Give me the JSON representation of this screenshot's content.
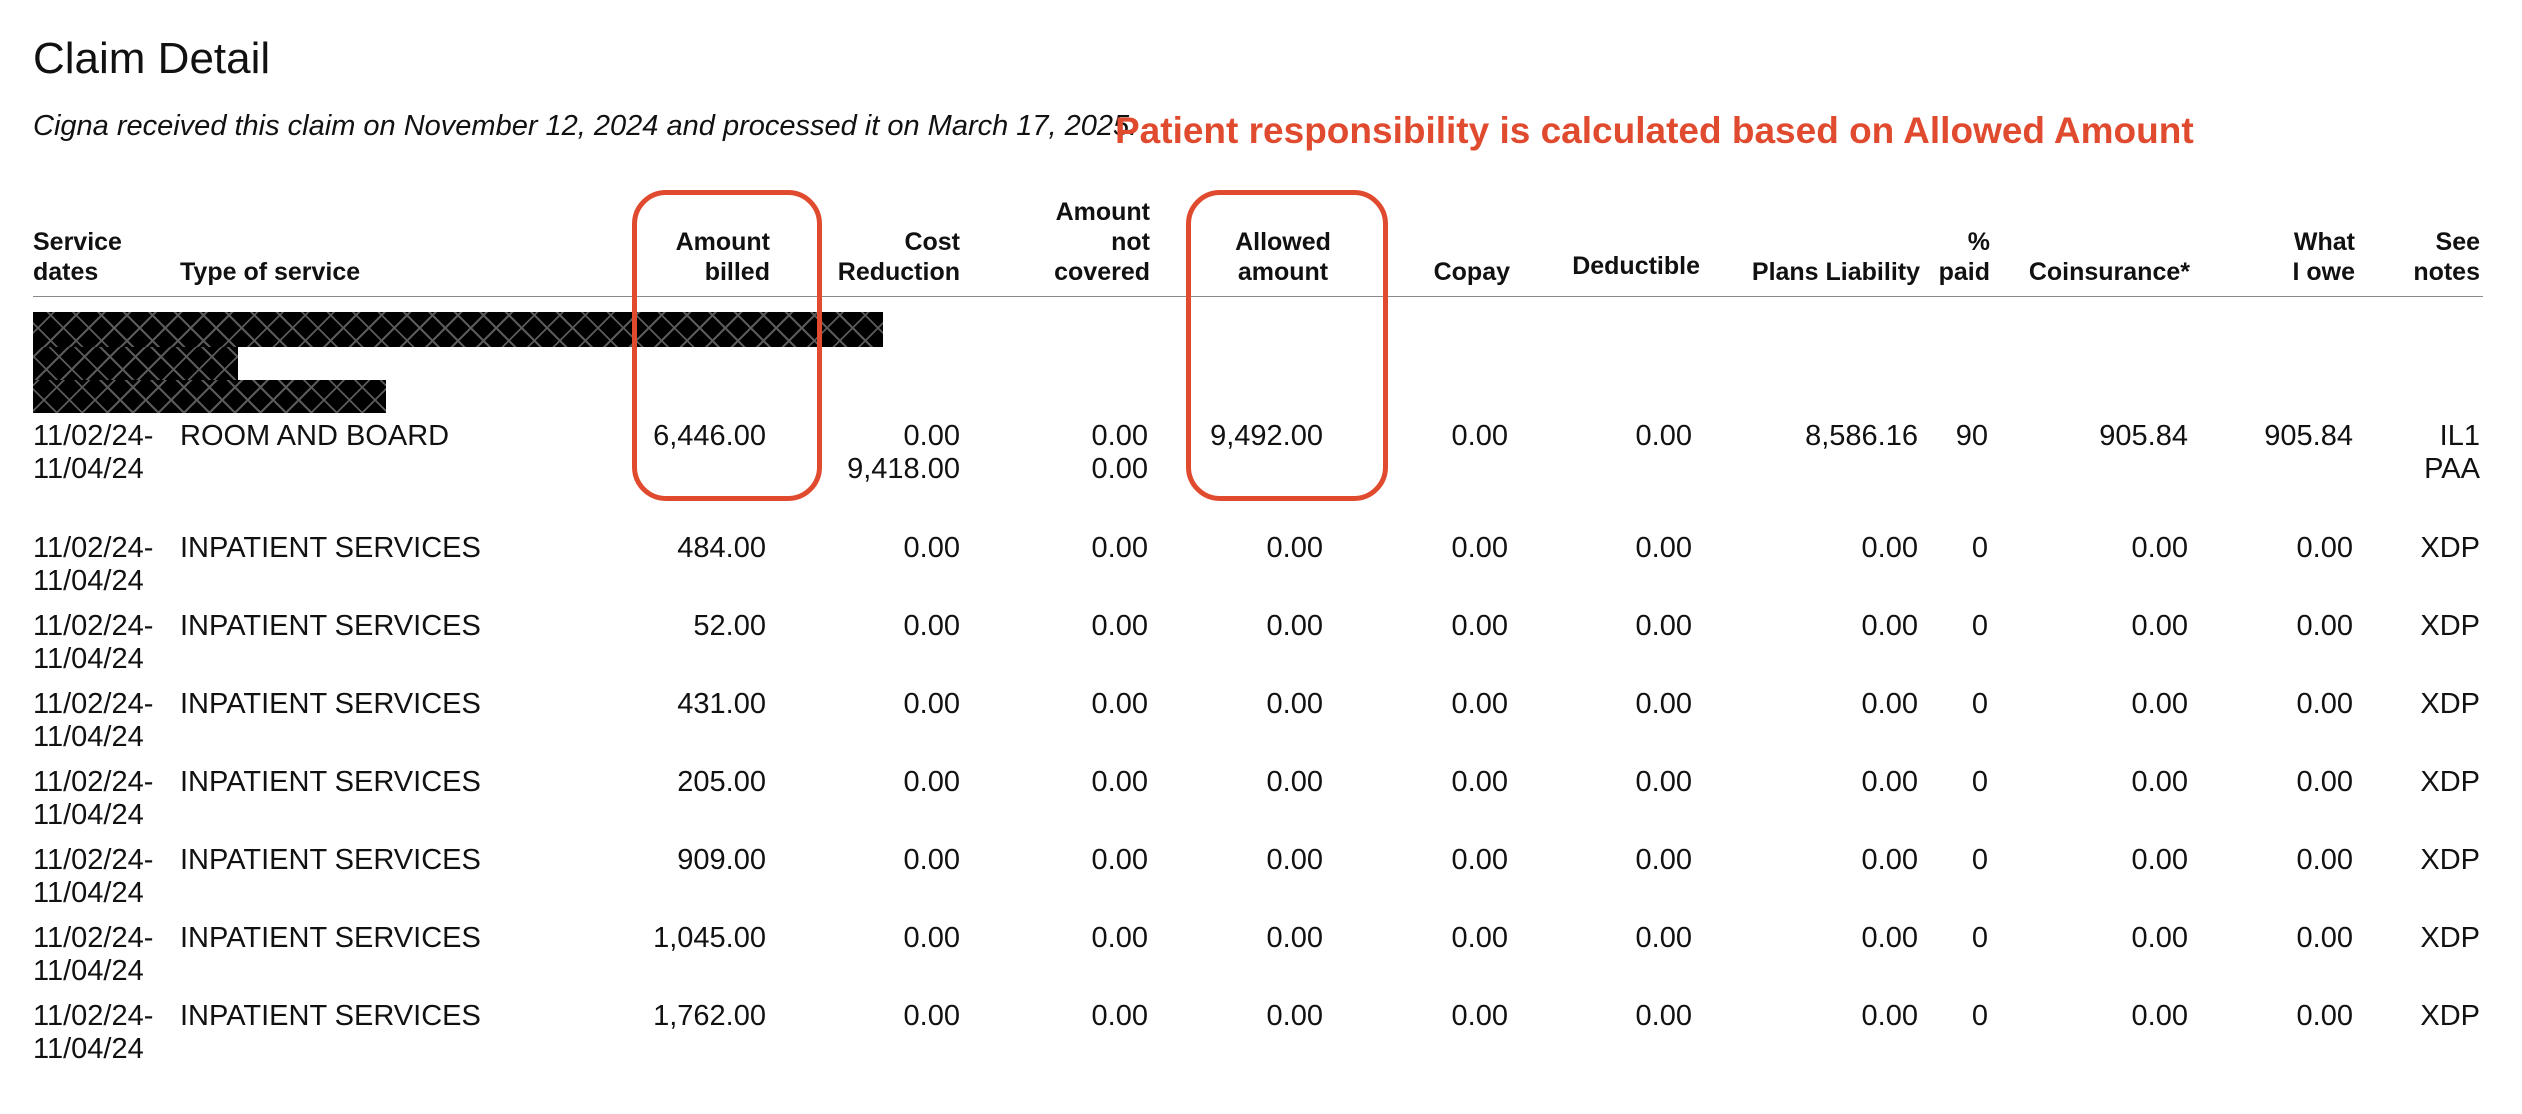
{
  "title": "Claim Detail",
  "subtitle": "Cigna received this claim on November 12, 2024 and processed it on March 17, 2025.",
  "annotation": "Patient responsibility is calculated based on Allowed Amount",
  "colors": {
    "annotation": "#e04a2e",
    "text": "#111111",
    "rule": "#8a8a8a"
  },
  "headers": {
    "service_dates": [
      "Service",
      "dates"
    ],
    "type_of_service": [
      "Type of  service"
    ],
    "amount_billed": [
      "Amount",
      "billed"
    ],
    "cost_reduction": [
      "Cost",
      "Reduction"
    ],
    "amount_not_covered": [
      "Amount",
      "not",
      "covered"
    ],
    "allowed_amount": [
      "Allowed",
      "amount"
    ],
    "copay": [
      "Copay"
    ],
    "deductible": [
      "Deductible"
    ],
    "plans_liability": [
      "Plans Liability"
    ],
    "pct_paid": [
      "%",
      "paid"
    ],
    "coinsurance": [
      "Coinsurance*"
    ],
    "what_i_owe": [
      "What",
      "I owe"
    ],
    "see_notes": [
      "See",
      "notes"
    ]
  },
  "rows": [
    {
      "dates": [
        "11/02/24-",
        "11/04/24"
      ],
      "type": "ROOM AND BOARD",
      "billed": "6,446.00",
      "cost_reduction": [
        "0.00",
        "9,418.00"
      ],
      "not_covered": [
        "0.00",
        "0.00"
      ],
      "allowed": "9,492.00",
      "copay": "0.00",
      "deductible": "0.00",
      "plans_liability": "8,586.16",
      "pct_paid": "90",
      "coinsurance": "905.84",
      "owe": "905.84",
      "notes": [
        "IL1",
        "PAA"
      ]
    },
    {
      "dates": [
        "11/02/24-",
        "11/04/24"
      ],
      "type": "INPATIENT SERVICES",
      "billed": "484.00",
      "cost_reduction": [
        "0.00"
      ],
      "not_covered": [
        "0.00"
      ],
      "allowed": "0.00",
      "copay": "0.00",
      "deductible": "0.00",
      "plans_liability": "0.00",
      "pct_paid": "0",
      "coinsurance": "0.00",
      "owe": "0.00",
      "notes": [
        "XDP"
      ]
    },
    {
      "dates": [
        "11/02/24-",
        "11/04/24"
      ],
      "type": "INPATIENT SERVICES",
      "billed": "52.00",
      "cost_reduction": [
        "0.00"
      ],
      "not_covered": [
        "0.00"
      ],
      "allowed": "0.00",
      "copay": "0.00",
      "deductible": "0.00",
      "plans_liability": "0.00",
      "pct_paid": "0",
      "coinsurance": "0.00",
      "owe": "0.00",
      "notes": [
        "XDP"
      ]
    },
    {
      "dates": [
        "11/02/24-",
        "11/04/24"
      ],
      "type": "INPATIENT SERVICES",
      "billed": "431.00",
      "cost_reduction": [
        "0.00"
      ],
      "not_covered": [
        "0.00"
      ],
      "allowed": "0.00",
      "copay": "0.00",
      "deductible": "0.00",
      "plans_liability": "0.00",
      "pct_paid": "0",
      "coinsurance": "0.00",
      "owe": "0.00",
      "notes": [
        "XDP"
      ]
    },
    {
      "dates": [
        "11/02/24-",
        "11/04/24"
      ],
      "type": "INPATIENT SERVICES",
      "billed": "205.00",
      "cost_reduction": [
        "0.00"
      ],
      "not_covered": [
        "0.00"
      ],
      "allowed": "0.00",
      "copay": "0.00",
      "deductible": "0.00",
      "plans_liability": "0.00",
      "pct_paid": "0",
      "coinsurance": "0.00",
      "owe": "0.00",
      "notes": [
        "XDP"
      ]
    },
    {
      "dates": [
        "11/02/24-",
        "11/04/24"
      ],
      "type": "INPATIENT SERVICES",
      "billed": "909.00",
      "cost_reduction": [
        "0.00"
      ],
      "not_covered": [
        "0.00"
      ],
      "allowed": "0.00",
      "copay": "0.00",
      "deductible": "0.00",
      "plans_liability": "0.00",
      "pct_paid": "0",
      "coinsurance": "0.00",
      "owe": "0.00",
      "notes": [
        "XDP"
      ]
    },
    {
      "dates": [
        "11/02/24-",
        "11/04/24"
      ],
      "type": "INPATIENT SERVICES",
      "billed": "1,045.00",
      "cost_reduction": [
        "0.00"
      ],
      "not_covered": [
        "0.00"
      ],
      "allowed": "0.00",
      "copay": "0.00",
      "deductible": "0.00",
      "plans_liability": "0.00",
      "pct_paid": "0",
      "coinsurance": "0.00",
      "owe": "0.00",
      "notes": [
        "XDP"
      ]
    },
    {
      "dates": [
        "11/02/24-",
        "11/04/24"
      ],
      "type": "INPATIENT SERVICES",
      "billed": "1,762.00",
      "cost_reduction": [
        "0.00"
      ],
      "not_covered": [
        "0.00"
      ],
      "allowed": "0.00",
      "copay": "0.00",
      "deductible": "0.00",
      "plans_liability": "0.00",
      "pct_paid": "0",
      "coinsurance": "0.00",
      "owe": "0.00",
      "notes": [
        "XDP"
      ]
    }
  ]
}
